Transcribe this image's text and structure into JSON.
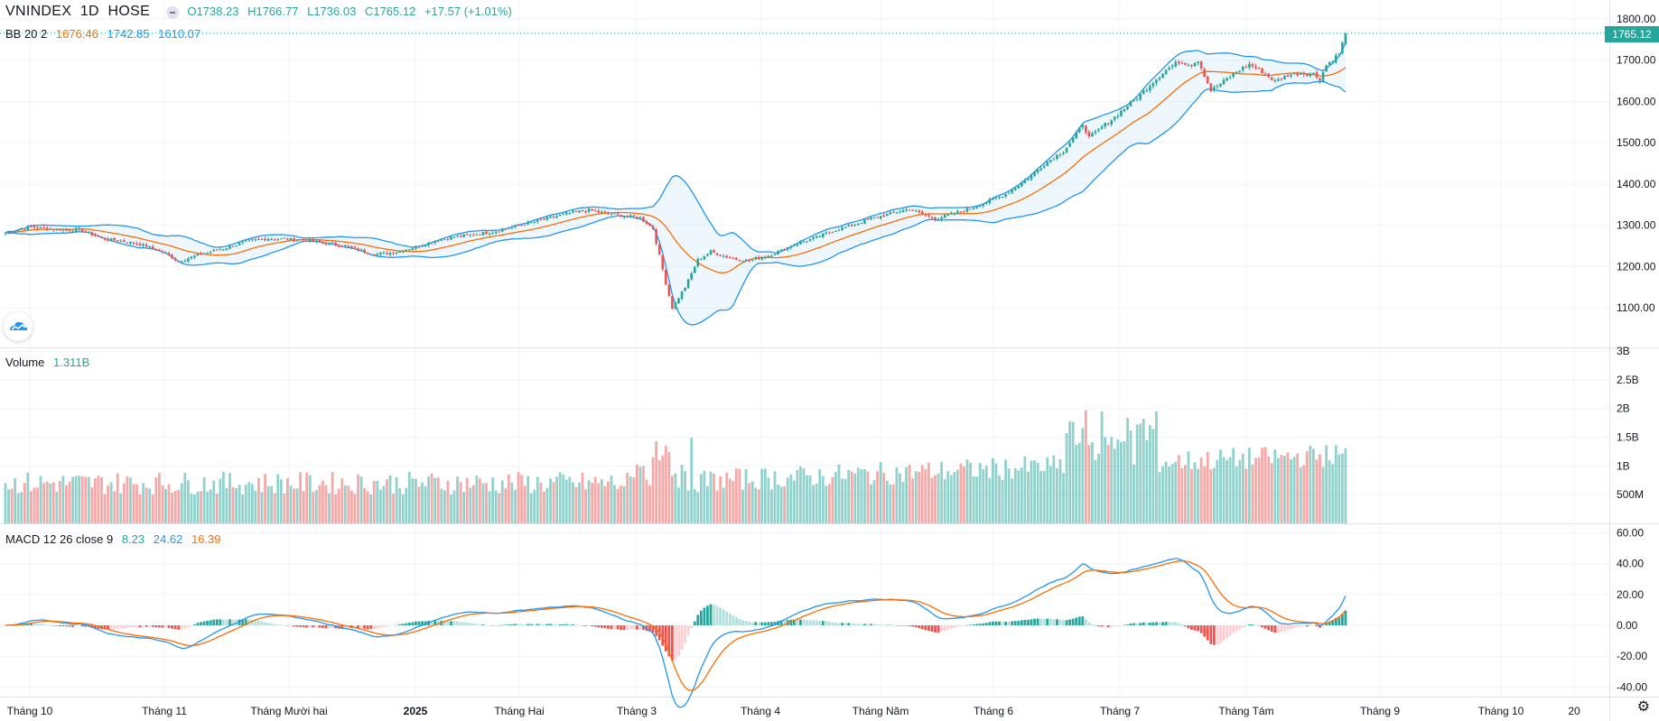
{
  "header": {
    "symbol": "VNINDEX",
    "interval": "1D",
    "exchange": "HOSE",
    "open": "O1738.23",
    "high": "H1766.77",
    "low": "L1736.03",
    "close": "C1765.12",
    "change": "+17.57 (+1.01%)"
  },
  "bb_legend": {
    "label": "BB 20 2",
    "basis": "1676.46",
    "upper": "1742.85",
    "lower": "1610.07"
  },
  "volume_legend": {
    "label": "Volume",
    "value": "1.311B"
  },
  "macd_legend": {
    "label": "MACD 12 26 close 9",
    "histogram": "8.23",
    "macd": "24.62",
    "signal": "16.39"
  },
  "last_price_tag": "1765.12",
  "colors": {
    "up": "#26a69a",
    "down": "#ef5350",
    "bb_band": "#2196f3",
    "bb_basis": "#ff6d00",
    "macd": "#2196f3",
    "signal": "#ff6d00"
  },
  "icons": {
    "logo": "tradingview-cloud-icon",
    "settings": "gear-icon"
  },
  "chart_data": [
    {
      "type": "candlestick",
      "title": "VNINDEX 1D HOSE",
      "x": [
        "Tháng 10",
        "Tháng 11",
        "Tháng Mười hai",
        "2025",
        "Tháng Hai",
        "Tháng 3",
        "Tháng 4",
        "Tháng Năm",
        "Tháng 6",
        "Tháng 7",
        "Tháng Tám",
        "Tháng 9",
        "Tháng 10",
        "20"
      ],
      "y_ticks": [
        "1800.00",
        "1700.00",
        "1600.00",
        "1500.00",
        "1400.00",
        "1300.00",
        "1200.00",
        "1100.00"
      ],
      "ylim": [
        1040,
        1830
      ],
      "close_path": [
        [
          0,
          1282
        ],
        [
          8,
          1296
        ],
        [
          16,
          1290
        ],
        [
          24,
          1288
        ],
        [
          30,
          1268
        ],
        [
          38,
          1260
        ],
        [
          44,
          1250
        ],
        [
          50,
          1232
        ],
        [
          54,
          1212
        ],
        [
          60,
          1228
        ],
        [
          64,
          1236
        ],
        [
          70,
          1248
        ],
        [
          76,
          1262
        ],
        [
          82,
          1268
        ],
        [
          88,
          1266
        ],
        [
          94,
          1264
        ],
        [
          100,
          1256
        ],
        [
          106,
          1250
        ],
        [
          110,
          1240
        ],
        [
          116,
          1230
        ],
        [
          122,
          1236
        ],
        [
          128,
          1248
        ],
        [
          134,
          1262
        ],
        [
          140,
          1272
        ],
        [
          146,
          1278
        ],
        [
          152,
          1284
        ],
        [
          158,
          1296
        ],
        [
          164,
          1306
        ],
        [
          170,
          1318
        ],
        [
          176,
          1330
        ],
        [
          182,
          1336
        ],
        [
          188,
          1328
        ],
        [
          194,
          1322
        ],
        [
          198,
          1318
        ],
        [
          202,
          1292
        ],
        [
          206,
          1160
        ],
        [
          208,
          1100
        ],
        [
          212,
          1150
        ],
        [
          216,
          1216
        ],
        [
          220,
          1236
        ],
        [
          224,
          1226
        ],
        [
          228,
          1218
        ],
        [
          232,
          1214
        ],
        [
          236,
          1222
        ],
        [
          240,
          1232
        ],
        [
          246,
          1254
        ],
        [
          252,
          1268
        ],
        [
          258,
          1286
        ],
        [
          264,
          1300
        ],
        [
          270,
          1316
        ],
        [
          276,
          1328
        ],
        [
          282,
          1340
        ],
        [
          286,
          1326
        ],
        [
          290,
          1316
        ],
        [
          294,
          1324
        ],
        [
          300,
          1338
        ],
        [
          306,
          1356
        ],
        [
          312,
          1376
        ],
        [
          318,
          1408
        ],
        [
          324,
          1448
        ],
        [
          330,
          1480
        ],
        [
          334,
          1520
        ],
        [
          336,
          1546
        ],
        [
          338,
          1512
        ],
        [
          342,
          1538
        ],
        [
          346,
          1562
        ],
        [
          350,
          1590
        ],
        [
          354,
          1616
        ],
        [
          358,
          1648
        ],
        [
          362,
          1676
        ],
        [
          366,
          1696
        ],
        [
          370,
          1690
        ],
        [
          372,
          1700
        ],
        [
          376,
          1626
        ],
        [
          380,
          1648
        ],
        [
          384,
          1672
        ],
        [
          388,
          1690
        ],
        [
          392,
          1672
        ],
        [
          396,
          1648
        ],
        [
          400,
          1664
        ],
        [
          404,
          1668
        ],
        [
          408,
          1666
        ],
        [
          410,
          1654
        ],
        [
          412,
          1688
        ],
        [
          416,
          1716
        ],
        [
          418,
          1765
        ]
      ]
    },
    {
      "type": "bar",
      "title": "Volume",
      "y_ticks": [
        "3B",
        "2.5B",
        "2B",
        "1.5B",
        "1B",
        "500M"
      ],
      "ylim": [
        0,
        3000000000
      ],
      "last_value": "1.311B"
    },
    {
      "type": "line",
      "title": "MACD 12 26 close 9",
      "series": [
        {
          "name": "MACD",
          "values": "computed from closes"
        },
        {
          "name": "Signal",
          "values": "computed from MACD"
        }
      ],
      "y_ticks": [
        "60.00",
        "40.00",
        "20.00",
        "0.00",
        "-20.00",
        "-40.00"
      ],
      "ylim": [
        -44,
        64
      ]
    }
  ]
}
